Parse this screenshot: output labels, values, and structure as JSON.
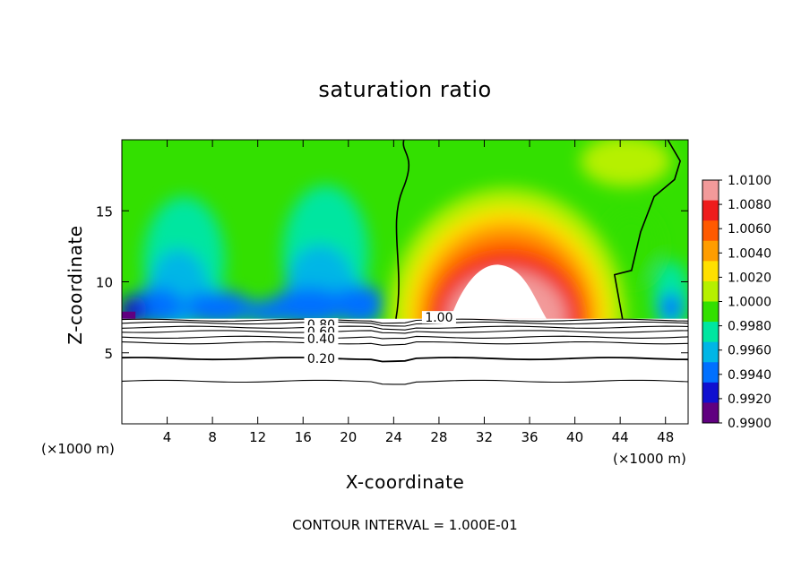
{
  "chart_data": {
    "type": "heatmap",
    "title": "saturation ratio",
    "xlabel": "X-coordinate",
    "ylabel": "Z-coordinate",
    "x_unit": "(×1000 m)",
    "x_unit_right": "(×1000 m)",
    "xlim": [
      0,
      50
    ],
    "ylim": [
      0,
      20
    ],
    "x_ticks": [
      4,
      8,
      12,
      16,
      20,
      24,
      28,
      32,
      36,
      40,
      44,
      48
    ],
    "y_ticks": [
      5,
      10,
      15
    ],
    "colorbar": {
      "levels": [
        "1.0100",
        "1.0080",
        "1.0060",
        "1.0040",
        "1.0020",
        "1.0000",
        "0.9980",
        "0.9960",
        "0.9940",
        "0.9920",
        "0.9900"
      ],
      "colors": [
        "#f29a9a",
        "#ee1c1c",
        "#ff5a00",
        "#ff9d00",
        "#ffe000",
        "#b6f000",
        "#33e000",
        "#00e6a0",
        "#00b6e6",
        "#0070ff",
        "#1010d0",
        "#600080"
      ]
    },
    "contour_labels": [
      "0.80",
      "0.60",
      "0.40",
      "0.20",
      "1.00"
    ],
    "contour_levels_z": [
      3.0,
      4.6,
      5.7,
      6.1,
      6.5,
      6.8,
      7.1,
      7.3
    ],
    "interval_text": "CONTOUR INTERVAL = 1.000E-01",
    "grid": false
  }
}
